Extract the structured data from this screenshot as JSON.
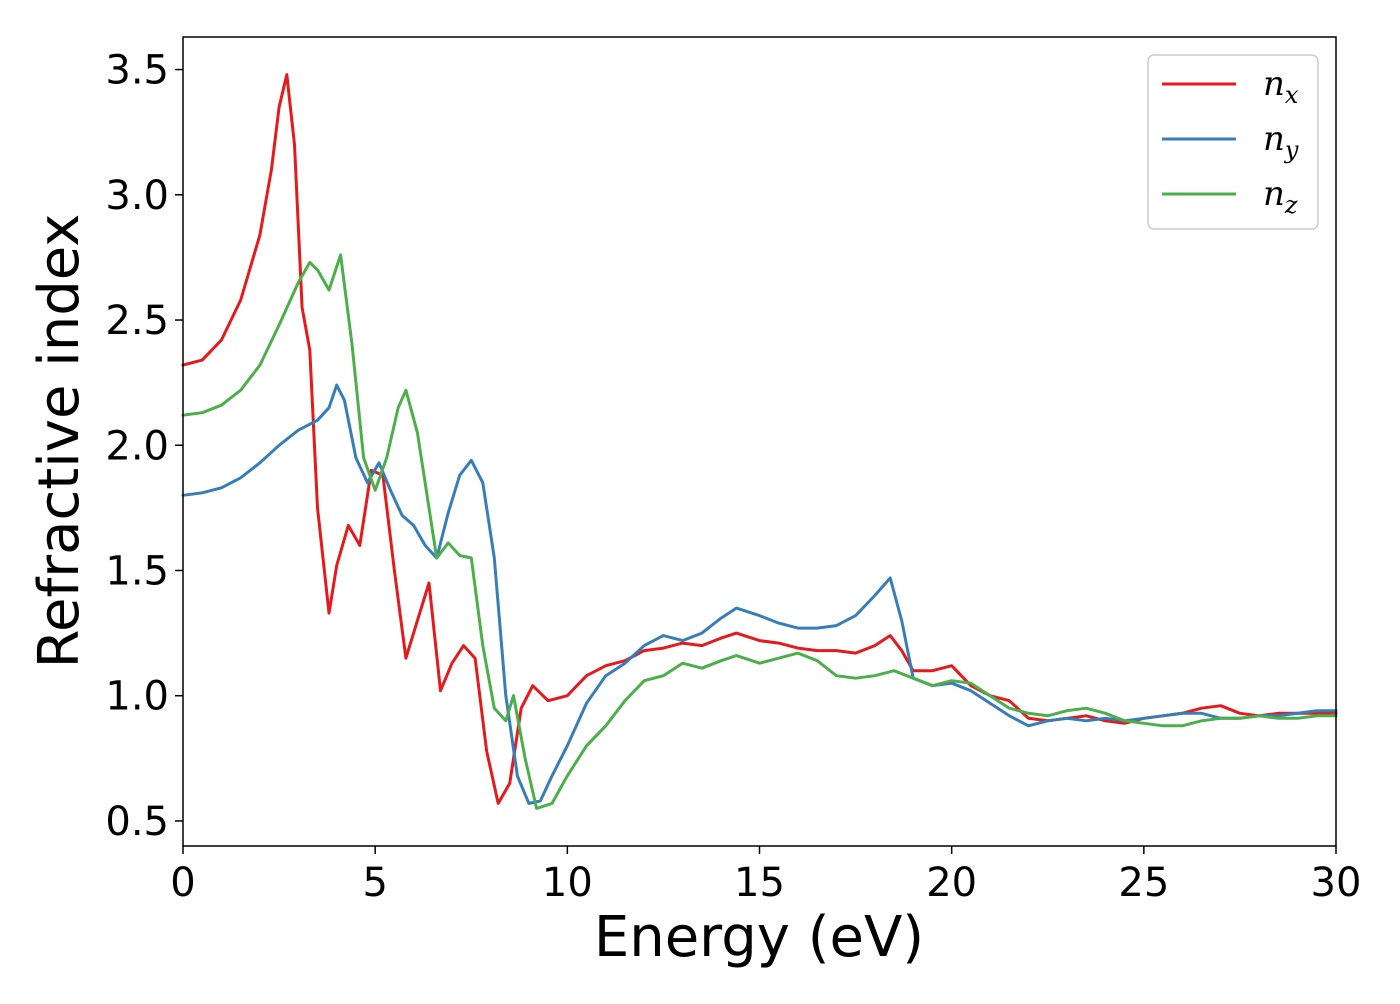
{
  "chart_data": {
    "type": "line",
    "xlabel": "Energy (eV)",
    "ylabel": "Refractive index",
    "xlim": [
      0,
      30
    ],
    "ylim": [
      0.4,
      3.63
    ],
    "xticks": [
      0,
      5,
      10,
      15,
      20,
      25,
      30
    ],
    "xtick_labels": [
      "0",
      "5",
      "10",
      "15",
      "20",
      "25",
      "30"
    ],
    "yticks": [
      0.5,
      1.0,
      1.5,
      2.0,
      2.5,
      3.0,
      3.5
    ],
    "ytick_labels": [
      "0.5",
      "1.0",
      "1.5",
      "2.0",
      "2.5",
      "3.0",
      "3.5"
    ],
    "grid": false,
    "legend_position": "top-right",
    "series": [
      {
        "name": "n_x",
        "legend_main": "n",
        "legend_sub": "x",
        "color": "#e41a1c",
        "x": [
          0,
          0.5,
          1.0,
          1.5,
          2.0,
          2.3,
          2.5,
          2.7,
          2.9,
          3.1,
          3.3,
          3.5,
          3.8,
          4.0,
          4.3,
          4.6,
          4.9,
          5.2,
          5.5,
          5.8,
          6.1,
          6.4,
          6.7,
          7.0,
          7.3,
          7.6,
          7.9,
          8.2,
          8.5,
          8.8,
          9.1,
          9.5,
          10.0,
          10.5,
          11.0,
          11.5,
          12.0,
          12.5,
          13.0,
          13.5,
          14.0,
          14.4,
          15.0,
          15.5,
          16.0,
          16.5,
          17.0,
          17.5,
          18.0,
          18.4,
          18.7,
          19.0,
          19.5,
          20.0,
          20.5,
          21.0,
          21.5,
          22.0,
          22.5,
          23.0,
          23.5,
          24.0,
          24.5,
          25.0,
          25.5,
          26.0,
          26.5,
          27.0,
          27.5,
          28.0,
          28.5,
          29.0,
          29.5,
          30.0
        ],
        "y": [
          2.32,
          2.34,
          2.42,
          2.58,
          2.84,
          3.1,
          3.35,
          3.48,
          3.2,
          2.55,
          2.38,
          1.75,
          1.33,
          1.52,
          1.68,
          1.6,
          1.9,
          1.88,
          1.5,
          1.15,
          1.3,
          1.45,
          1.02,
          1.13,
          1.2,
          1.15,
          0.78,
          0.57,
          0.65,
          0.95,
          1.04,
          0.98,
          1.0,
          1.08,
          1.12,
          1.14,
          1.18,
          1.19,
          1.21,
          1.2,
          1.23,
          1.25,
          1.22,
          1.21,
          1.19,
          1.18,
          1.18,
          1.17,
          1.2,
          1.24,
          1.18,
          1.1,
          1.1,
          1.12,
          1.04,
          1.0,
          0.98,
          0.91,
          0.9,
          0.91,
          0.92,
          0.9,
          0.89,
          0.91,
          0.92,
          0.93,
          0.95,
          0.96,
          0.93,
          0.92,
          0.93,
          0.93,
          0.93,
          0.93
        ]
      },
      {
        "name": "n_y",
        "legend_main": "n",
        "legend_sub": "y",
        "color": "#377eb8",
        "x": [
          0,
          0.5,
          1.0,
          1.5,
          2.0,
          2.5,
          3.0,
          3.5,
          3.8,
          4.0,
          4.2,
          4.5,
          4.8,
          5.1,
          5.4,
          5.7,
          6.0,
          6.3,
          6.6,
          6.9,
          7.2,
          7.5,
          7.8,
          8.1,
          8.4,
          8.7,
          9.0,
          9.3,
          9.6,
          10.0,
          10.5,
          11.0,
          11.5,
          12.0,
          12.5,
          13.0,
          13.5,
          14.0,
          14.4,
          15.0,
          15.5,
          16.0,
          16.5,
          17.0,
          17.5,
          18.0,
          18.4,
          18.7,
          19.0,
          19.5,
          20.0,
          20.5,
          21.0,
          21.5,
          22.0,
          22.5,
          23.0,
          23.5,
          24.0,
          24.5,
          25.0,
          25.5,
          26.0,
          26.5,
          27.0,
          27.5,
          28.0,
          28.5,
          29.0,
          29.5,
          30.0
        ],
        "y": [
          1.8,
          1.81,
          1.83,
          1.87,
          1.93,
          2.0,
          2.06,
          2.1,
          2.15,
          2.24,
          2.18,
          1.95,
          1.85,
          1.93,
          1.82,
          1.72,
          1.68,
          1.6,
          1.55,
          1.73,
          1.88,
          1.94,
          1.85,
          1.55,
          1.0,
          0.68,
          0.57,
          0.58,
          0.68,
          0.8,
          0.97,
          1.08,
          1.13,
          1.2,
          1.24,
          1.22,
          1.25,
          1.31,
          1.35,
          1.32,
          1.29,
          1.27,
          1.27,
          1.28,
          1.32,
          1.4,
          1.47,
          1.3,
          1.07,
          1.04,
          1.05,
          1.02,
          0.97,
          0.92,
          0.88,
          0.9,
          0.91,
          0.9,
          0.91,
          0.9,
          0.91,
          0.92,
          0.93,
          0.93,
          0.91,
          0.91,
          0.92,
          0.92,
          0.93,
          0.94,
          0.94
        ]
      },
      {
        "name": "n_z",
        "legend_main": "n",
        "legend_sub": "z",
        "color": "#4daf4a",
        "x": [
          0,
          0.5,
          1.0,
          1.5,
          2.0,
          2.5,
          3.0,
          3.3,
          3.5,
          3.8,
          4.1,
          4.4,
          4.7,
          5.0,
          5.3,
          5.6,
          5.8,
          6.1,
          6.4,
          6.6,
          6.9,
          7.2,
          7.5,
          7.8,
          8.1,
          8.4,
          8.6,
          8.9,
          9.2,
          9.6,
          10.0,
          10.5,
          11.0,
          11.5,
          12.0,
          12.5,
          13.0,
          13.5,
          14.0,
          14.4,
          15.0,
          15.5,
          16.0,
          16.5,
          17.0,
          17.5,
          18.0,
          18.5,
          19.0,
          19.5,
          20.0,
          20.5,
          21.0,
          21.5,
          22.0,
          22.5,
          23.0,
          23.5,
          24.0,
          24.5,
          25.0,
          25.5,
          26.0,
          26.5,
          27.0,
          27.5,
          28.0,
          28.5,
          29.0,
          29.5,
          30.0
        ],
        "y": [
          2.12,
          2.13,
          2.16,
          2.22,
          2.32,
          2.48,
          2.65,
          2.73,
          2.7,
          2.62,
          2.76,
          2.4,
          1.95,
          1.82,
          1.95,
          2.15,
          2.22,
          2.05,
          1.75,
          1.55,
          1.61,
          1.56,
          1.55,
          1.2,
          0.95,
          0.9,
          1.0,
          0.75,
          0.55,
          0.57,
          0.68,
          0.8,
          0.88,
          0.98,
          1.06,
          1.08,
          1.13,
          1.11,
          1.14,
          1.16,
          1.13,
          1.15,
          1.17,
          1.14,
          1.08,
          1.07,
          1.08,
          1.1,
          1.07,
          1.04,
          1.06,
          1.05,
          1.0,
          0.95,
          0.93,
          0.92,
          0.94,
          0.95,
          0.93,
          0.9,
          0.89,
          0.88,
          0.88,
          0.9,
          0.91,
          0.91,
          0.92,
          0.91,
          0.91,
          0.92,
          0.92
        ]
      }
    ]
  }
}
